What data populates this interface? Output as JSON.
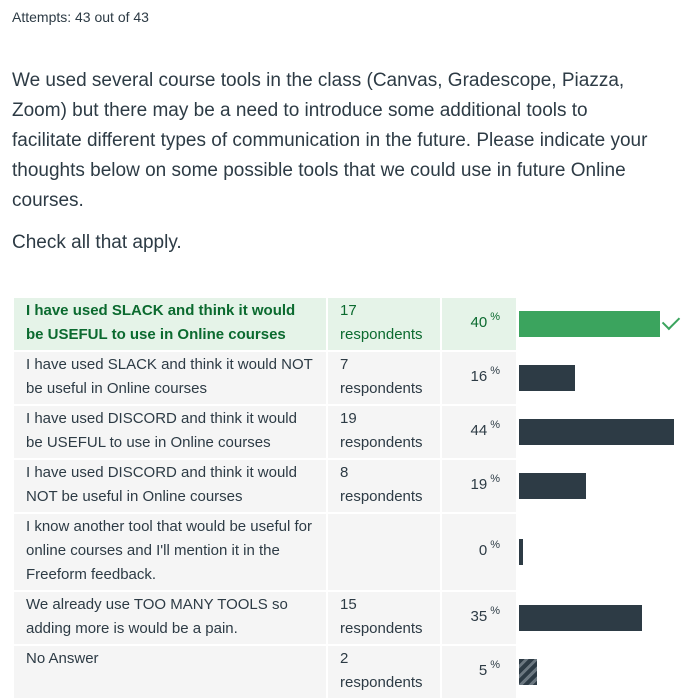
{
  "header": {
    "attempts": "Attempts: 43 out of 43"
  },
  "question": {
    "paragraphs": [
      "We used several course tools in the class (Canvas, Gradescope, Piazza, Zoom) but there may be a need to introduce some additional tools to facilitate different types of communication in the future. Please indicate your thoughts below on some possible tools that we could use in future Online courses.",
      "Check all that apply."
    ]
  },
  "table": {
    "percent_unit": "%",
    "rows": [
      {
        "label": "I have used SLACK and think it would be USEFUL to use in Online courses",
        "respondents": "17 respondents",
        "percent": 40,
        "correct": true
      },
      {
        "label": "I have used SLACK and think it would NOT be useful in Online courses",
        "respondents": "7 respondents",
        "percent": 16,
        "correct": false
      },
      {
        "label": "I have used DISCORD and think it would be USEFUL to use in Online courses",
        "respondents": "19 respondents",
        "percent": 44,
        "correct": false
      },
      {
        "label": "I have used DISCORD and think it would NOT be useful in Online courses",
        "respondents": "8 respondents",
        "percent": 19,
        "correct": false
      },
      {
        "label": "I know another tool that would be useful for online courses and I'll mention it in the Freeform feedback.",
        "respondents": null,
        "percent": 0,
        "correct": false
      },
      {
        "label": "We already use TOO MANY TOOLS so adding more is would be a pain.",
        "respondents": "15 respondents",
        "percent": 35,
        "correct": false
      },
      {
        "label": "No Answer",
        "respondents": "2 respondents",
        "percent": 5,
        "correct": false,
        "no_answer": true
      }
    ]
  }
}
